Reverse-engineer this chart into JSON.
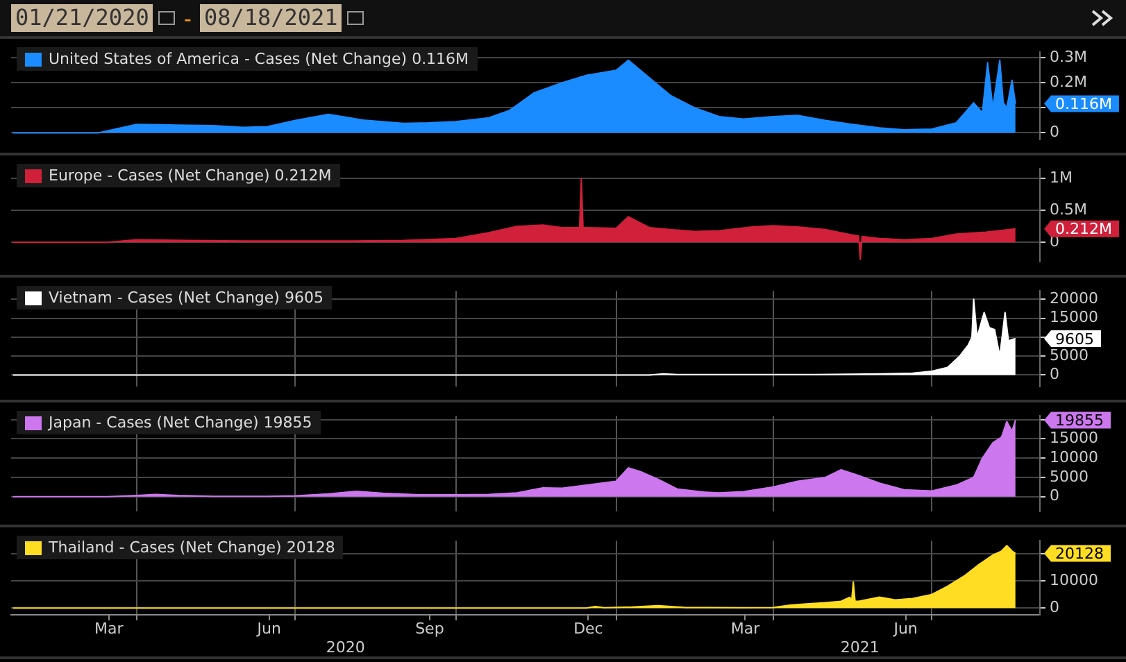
{
  "chart_data": [
    {
      "type": "area",
      "annotations": [
        "01/21/2020",
        "-",
        "08/18/2021",
        {
          "text": "0.116M",
          "x": "2021-08-18",
          "y": 116000
        }
      ],
      "legend": "top left",
      "grid": "y",
      "tick_labels": "y",
      "marker": "none",
      "xlim": [
        "2020-01-20",
        "2021-09-01"
      ],
      "ylim": [
        -26000,
        322000
      ],
      "yticks": [
        0,
        {
          "value": 100000,
          "label": null
        },
        {
          "value": 200000,
          "label": "0.2M"
        },
        {
          "value": 300000,
          "label": "0.3M"
        }
      ],
      "series": [
        {
          "name": "United States of America - Cases (Net Change) 0.116M",
          "color": "#1a8cff",
          "x": [
            "2020-01-21",
            "2020-03-10",
            "2020-04-01",
            "2020-04-15",
            "2020-05-15",
            "2020-06-01",
            "2020-06-15",
            "2020-07-01",
            "2020-07-20",
            "2020-08-10",
            "2020-09-01",
            "2020-09-15",
            "2020-10-01",
            "2020-10-20",
            "2020-11-01",
            "2020-11-15",
            "2020-12-01",
            "2020-12-15",
            "2021-01-01",
            "2021-01-08",
            "2021-01-20",
            "2021-02-01",
            "2021-02-15",
            "2021-03-01",
            "2021-03-15",
            "2021-04-01",
            "2021-04-15",
            "2021-05-01",
            "2021-05-15",
            "2021-06-01",
            "2021-06-15",
            "2021-07-01",
            "2021-07-15",
            "2021-07-25",
            "2021-07-30",
            "2021-08-02",
            "2021-08-05",
            "2021-08-09",
            "2021-08-11",
            "2021-08-13",
            "2021-08-16",
            "2021-08-18"
          ],
          "values": [
            0,
            0,
            34000,
            32000,
            29000,
            22000,
            25000,
            50000,
            74000,
            50000,
            38000,
            40000,
            45000,
            60000,
            90000,
            160000,
            200000,
            230000,
            250000,
            290000,
            220000,
            150000,
            100000,
            65000,
            55000,
            65000,
            70000,
            50000,
            35000,
            20000,
            12000,
            15000,
            40000,
            120000,
            80000,
            280000,
            100000,
            290000,
            120000,
            100000,
            210000,
            116000
          ]
        }
      ]
    },
    {
      "type": "area",
      "annotations": [
        {
          "text": "0.212M",
          "x": "2021-08-18",
          "y": 212000
        }
      ],
      "legend": "top left",
      "grid": "y",
      "tick_labels": "y",
      "marker": "none",
      "xlim": [
        "2020-01-20",
        "2021-09-01"
      ],
      "ylim": [
        -300000,
        1150000
      ],
      "yticks": [
        0,
        {
          "value": 500000,
          "label": "0.5M"
        },
        {
          "value": 1000000,
          "label": "1M"
        }
      ],
      "series": [
        {
          "name": "Europe - Cases (Net Change) 0.212M",
          "color": "#d0203a",
          "x": [
            "2020-01-21",
            "2020-03-15",
            "2020-04-01",
            "2020-05-01",
            "2020-06-01",
            "2020-07-01",
            "2020-08-01",
            "2020-09-01",
            "2020-10-01",
            "2020-10-20",
            "2020-11-05",
            "2020-11-20",
            "2020-12-01",
            "2020-12-11",
            "2020-12-12",
            "2020-12-13",
            "2020-12-15",
            "2021-01-01",
            "2021-01-08",
            "2021-01-20",
            "2021-02-01",
            "2021-02-15",
            "2021-03-01",
            "2021-03-20",
            "2021-04-01",
            "2021-04-15",
            "2021-05-01",
            "2021-05-15",
            "2021-05-20",
            "2021-05-21",
            "2021-05-22",
            "2021-06-01",
            "2021-06-15",
            "2021-07-01",
            "2021-07-15",
            "2021-08-01",
            "2021-08-18"
          ],
          "values": [
            0,
            0,
            40000,
            30000,
            20000,
            20000,
            20000,
            30000,
            60000,
            150000,
            250000,
            270000,
            230000,
            230000,
            1000000,
            230000,
            230000,
            220000,
            400000,
            230000,
            200000,
            170000,
            180000,
            240000,
            260000,
            240000,
            200000,
            120000,
            100000,
            -270000,
            90000,
            60000,
            40000,
            60000,
            130000,
            160000,
            212000
          ]
        }
      ]
    },
    {
      "type": "area",
      "annotations": [
        {
          "text": "9605",
          "x": "2021-08-18",
          "y": 9605
        }
      ],
      "legend": "top left",
      "grid": true,
      "tick_labels": "y",
      "marker": "none",
      "xlim": [
        "2020-01-20",
        "2021-09-01"
      ],
      "xticks": [
        {
          "value": "2020-04-01",
          "label": null
        },
        {
          "value": "2020-07-01",
          "label": null
        },
        {
          "value": "2020-10-01",
          "label": null
        },
        {
          "value": "2021-01-01",
          "label": null
        },
        {
          "value": "2021-04-01",
          "label": null
        },
        {
          "value": "2021-07-01",
          "label": null
        }
      ],
      "ylim": [
        -3000,
        22200
      ],
      "yticks": [
        0,
        5000,
        {
          "value": 10000,
          "label": null
        },
        15000,
        20000
      ],
      "series": [
        {
          "name": "Vietnam - Cases (Net Change) 9605",
          "color": "#ffffff",
          "x": [
            "2020-01-21",
            "2021-01-20",
            "2021-01-28",
            "2021-02-05",
            "2021-04-25",
            "2021-05-15",
            "2021-06-01",
            "2021-06-20",
            "2021-07-01",
            "2021-07-10",
            "2021-07-17",
            "2021-07-22",
            "2021-07-24",
            "2021-07-25",
            "2021-07-27",
            "2021-07-31",
            "2021-08-03",
            "2021-08-06",
            "2021-08-09",
            "2021-08-12",
            "2021-08-14",
            "2021-08-17",
            "2021-08-18"
          ],
          "values": [
            0,
            0,
            300,
            100,
            100,
            200,
            300,
            500,
            1000,
            2000,
            5000,
            8000,
            10000,
            20000,
            10000,
            16500,
            12500,
            12000,
            5000,
            16500,
            9000,
            9500,
            9605
          ]
        }
      ]
    },
    {
      "type": "area",
      "annotations": [
        {
          "text": "19855",
          "x": "2021-08-18",
          "y": 19855
        }
      ],
      "legend": "top left",
      "grid": true,
      "tick_labels": "y",
      "marker": "none",
      "xlim": [
        "2020-01-20",
        "2021-09-01"
      ],
      "xticks": [
        {
          "value": "2020-04-01",
          "label": null
        },
        {
          "value": "2020-07-01",
          "label": null
        },
        {
          "value": "2020-10-01",
          "label": null
        },
        {
          "value": "2021-01-01",
          "label": null
        },
        {
          "value": "2021-04-01",
          "label": null
        },
        {
          "value": "2021-07-01",
          "label": null
        }
      ],
      "ylim": [
        -3800,
        21000
      ],
      "yticks": [
        0,
        5000,
        10000,
        15000,
        {
          "value": 20000,
          "label": null
        }
      ],
      "series": [
        {
          "name": "Japan - Cases (Net Change) 19855",
          "color": "#cc77ee",
          "x": [
            "2020-01-21",
            "2020-03-15",
            "2020-04-01",
            "2020-04-12",
            "2020-04-25",
            "2020-05-15",
            "2020-06-15",
            "2020-07-01",
            "2020-07-20",
            "2020-08-05",
            "2020-08-20",
            "2020-09-10",
            "2020-10-01",
            "2020-10-20",
            "2020-11-05",
            "2020-11-20",
            "2020-12-01",
            "2020-12-15",
            "2021-01-01",
            "2021-01-08",
            "2021-01-15",
            "2021-01-25",
            "2021-02-05",
            "2021-02-20",
            "2021-03-01",
            "2021-03-15",
            "2021-04-01",
            "2021-04-15",
            "2021-05-01",
            "2021-05-10",
            "2021-05-20",
            "2021-06-01",
            "2021-06-15",
            "2021-07-01",
            "2021-07-15",
            "2021-07-25",
            "2021-07-30",
            "2021-08-05",
            "2021-08-10",
            "2021-08-13",
            "2021-08-16",
            "2021-08-18"
          ],
          "values": [
            0,
            0,
            300,
            600,
            300,
            100,
            100,
            200,
            700,
            1400,
            900,
            500,
            500,
            600,
            1000,
            2300,
            2200,
            3000,
            4000,
            7500,
            6500,
            4500,
            2000,
            1200,
            1000,
            1300,
            2500,
            4000,
            5000,
            7000,
            5500,
            3500,
            1800,
            1500,
            3000,
            5000,
            10000,
            14000,
            15500,
            19500,
            17000,
            19855
          ]
        }
      ]
    },
    {
      "type": "area",
      "annotations": [
        {
          "text": "20128",
          "x": "2021-08-18",
          "y": 20128
        },
        "2020",
        "2021"
      ],
      "legend": "top left",
      "grid": true,
      "marker": "none",
      "xlim": [
        "2020-01-20",
        "2021-09-01"
      ],
      "xticks": [
        {
          "value": "2020-03-16",
          "label": "Mar"
        },
        {
          "value": "2020-04-01",
          "label": null
        },
        {
          "value": "2020-06-16",
          "label": "Jun"
        },
        {
          "value": "2020-07-01",
          "label": null
        },
        {
          "value": "2020-09-16",
          "label": "Sep"
        },
        {
          "value": "2020-10-01",
          "label": null
        },
        {
          "value": "2020-12-16",
          "label": "Dec"
        },
        {
          "value": "2021-01-01",
          "label": null
        },
        {
          "value": "2021-03-16",
          "label": "Mar"
        },
        {
          "value": "2021-04-01",
          "label": null
        },
        {
          "value": "2021-06-16",
          "label": "Jun"
        },
        {
          "value": "2021-07-01",
          "label": null
        }
      ],
      "ylim": [
        -2500,
        24800
      ],
      "yticks": [
        0,
        10000,
        {
          "value": 20000,
          "label": null
        }
      ],
      "series": [
        {
          "name": "Thailand - Cases (Net Change) 20128",
          "color": "#ffdd22",
          "x": [
            "2020-01-21",
            "2020-12-15",
            "2020-12-20",
            "2020-12-25",
            "2021-01-10",
            "2021-01-25",
            "2021-02-10",
            "2021-03-15",
            "2021-04-01",
            "2021-04-10",
            "2021-04-20",
            "2021-05-01",
            "2021-05-10",
            "2021-05-15",
            "2021-05-16",
            "2021-05-17",
            "2021-05-18",
            "2021-05-20",
            "2021-06-01",
            "2021-06-10",
            "2021-06-20",
            "2021-07-01",
            "2021-07-10",
            "2021-07-20",
            "2021-07-28",
            "2021-08-05",
            "2021-08-10",
            "2021-08-13",
            "2021-08-16",
            "2021-08-18"
          ],
          "values": [
            0,
            0,
            600,
            100,
            400,
            900,
            200,
            100,
            200,
            1000,
            1500,
            2000,
            2500,
            4000,
            2500,
            9600,
            2500,
            2500,
            4000,
            3000,
            3500,
            5000,
            8000,
            12000,
            16000,
            19500,
            21000,
            23000,
            21000,
            20128
          ]
        }
      ]
    }
  ]
}
